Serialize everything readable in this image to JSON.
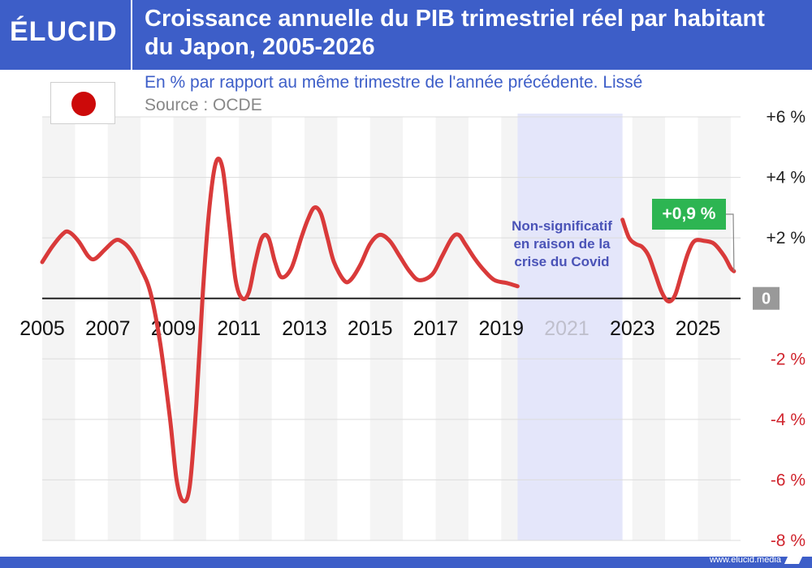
{
  "brand": {
    "logo": "ÉLUCID",
    "footer_link": "www.elucid.media"
  },
  "header": {
    "title": "Croissance annuelle du PIB trimestriel réel par habitant du Japon, 2005-2026",
    "subtitle": "En % par rapport au même trimestre de l'année précédente. Lissé",
    "source": "Source : OCDE"
  },
  "flag": {
    "country": "Japon",
    "icon": "japan-flag-icon"
  },
  "annotations": {
    "covid_note": "Non-significatif en raison de la crise du Covid",
    "last_value": "+0,9 %"
  },
  "colors": {
    "brand_blue": "#3d5ec8",
    "line": "#d93a3a",
    "negative_tick": "#d0242d",
    "callout": "#2db552",
    "covid_band": "#e4e6fa",
    "stripe": "#f4f4f4",
    "zero_badge": "#999999"
  },
  "chart_data": {
    "type": "line",
    "title": "Croissance annuelle du PIB trimestriel réel par habitant du Japon, 2005-2026",
    "subtitle": "En % par rapport au même trimestre de l'année précédente. Lissé",
    "ylabel": "",
    "xlabel": "",
    "xlim": [
      2005,
      2026.3
    ],
    "ylim": [
      -8,
      6
    ],
    "x_ticks": [
      "2005",
      "2007",
      "2009",
      "2011",
      "2013",
      "2015",
      "2017",
      "2019",
      "2021",
      "2023",
      "2025"
    ],
    "y_ticks": [
      "+6 %",
      "+4 %",
      "+2 %",
      "0",
      "-2 %",
      "-4 %",
      "-6 %",
      "-8 %"
    ],
    "grid": true,
    "shaded_region": {
      "from": 2019.5,
      "to": 2022.7,
      "label": "Non-significatif en raison de la crise du Covid"
    },
    "series": [
      {
        "segments": [
          [
            [
              2005.0,
              1.2
            ],
            [
              2005.3,
              1.7
            ],
            [
              2005.6,
              2.1
            ],
            [
              2005.8,
              2.2
            ],
            [
              2006.1,
              1.9
            ],
            [
              2006.4,
              1.4
            ],
            [
              2006.6,
              1.3
            ],
            [
              2006.9,
              1.6
            ],
            [
              2007.2,
              1.9
            ],
            [
              2007.4,
              1.9
            ],
            [
              2007.7,
              1.6
            ],
            [
              2008.0,
              1.0
            ],
            [
              2008.3,
              0.2
            ],
            [
              2008.6,
              -1.5
            ],
            [
              2008.9,
              -4.0
            ],
            [
              2009.1,
              -6.0
            ],
            [
              2009.3,
              -6.7
            ],
            [
              2009.5,
              -6.2
            ],
            [
              2009.7,
              -3.5
            ],
            [
              2009.9,
              0.2
            ],
            [
              2010.1,
              3.0
            ],
            [
              2010.3,
              4.5
            ],
            [
              2010.5,
              4.3
            ],
            [
              2010.7,
              2.5
            ],
            [
              2010.9,
              0.6
            ],
            [
              2011.1,
              0.0
            ],
            [
              2011.3,
              0.2
            ],
            [
              2011.5,
              1.2
            ],
            [
              2011.7,
              2.0
            ],
            [
              2011.9,
              2.0
            ],
            [
              2012.1,
              1.2
            ],
            [
              2012.3,
              0.7
            ],
            [
              2012.6,
              1.0
            ],
            [
              2012.9,
              2.0
            ],
            [
              2013.1,
              2.6
            ],
            [
              2013.3,
              3.0
            ],
            [
              2013.5,
              2.8
            ],
            [
              2013.7,
              2.0
            ],
            [
              2013.9,
              1.2
            ],
            [
              2014.2,
              0.6
            ],
            [
              2014.4,
              0.6
            ],
            [
              2014.7,
              1.1
            ],
            [
              2015.0,
              1.8
            ],
            [
              2015.3,
              2.1
            ],
            [
              2015.6,
              1.9
            ],
            [
              2015.9,
              1.4
            ],
            [
              2016.2,
              0.9
            ],
            [
              2016.5,
              0.6
            ],
            [
              2016.9,
              0.8
            ],
            [
              2017.2,
              1.4
            ],
            [
              2017.5,
              2.0
            ],
            [
              2017.7,
              2.1
            ],
            [
              2017.9,
              1.8
            ],
            [
              2018.2,
              1.3
            ],
            [
              2018.5,
              0.9
            ],
            [
              2018.8,
              0.6
            ],
            [
              2019.2,
              0.5
            ],
            [
              2019.5,
              0.4
            ]
          ],
          [
            [
              2022.7,
              2.6
            ],
            [
              2022.9,
              2.0
            ],
            [
              2023.1,
              1.8
            ],
            [
              2023.3,
              1.7
            ],
            [
              2023.5,
              1.4
            ],
            [
              2023.7,
              0.8
            ],
            [
              2023.9,
              0.2
            ],
            [
              2024.1,
              -0.1
            ],
            [
              2024.3,
              0.1
            ],
            [
              2024.5,
              0.8
            ],
            [
              2024.7,
              1.5
            ],
            [
              2024.9,
              1.9
            ],
            [
              2025.2,
              1.9
            ],
            [
              2025.5,
              1.8
            ],
            [
              2025.8,
              1.4
            ],
            [
              2026.0,
              1.0
            ],
            [
              2026.1,
              0.9
            ]
          ]
        ]
      }
    ]
  }
}
